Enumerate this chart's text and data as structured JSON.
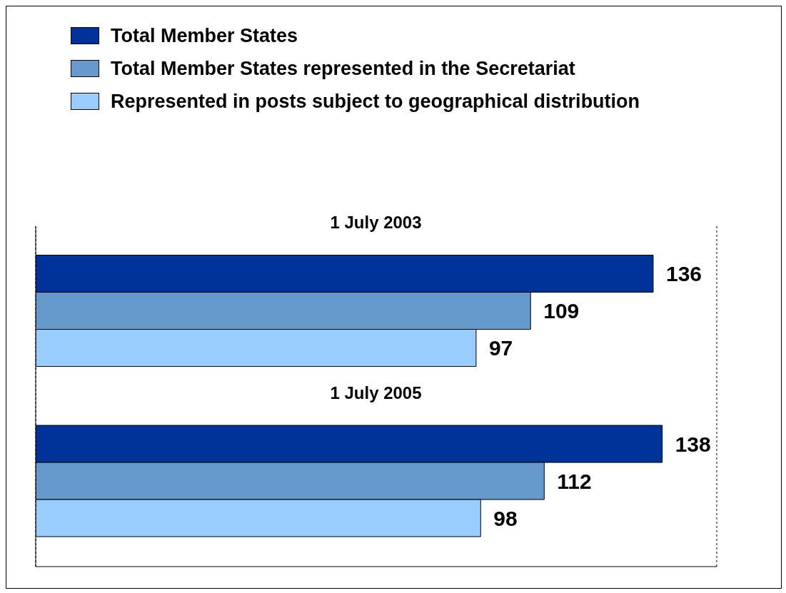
{
  "chart_data": {
    "type": "bar",
    "orientation": "horizontal",
    "categories": [
      "1 July 2003",
      "1 July 2005"
    ],
    "series": [
      {
        "name": "Total Member States",
        "color": "#003399",
        "values": [
          136,
          138
        ]
      },
      {
        "name": "Total Member States represented in the Secretariat",
        "color": "#6699cc",
        "values": [
          109,
          112
        ]
      },
      {
        "name": "Represented in posts subject to geographical distribution",
        "color": "#99ccff",
        "values": [
          97,
          98
        ]
      }
    ],
    "xlim": [
      0,
      150
    ],
    "tick_labels": false,
    "grid": "x",
    "legend": "top left",
    "data_labels": true
  }
}
